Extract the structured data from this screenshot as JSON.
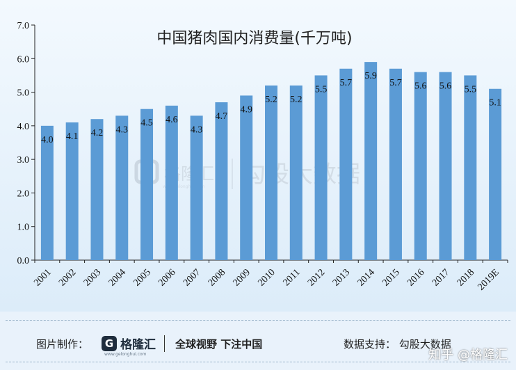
{
  "chart_data": {
    "type": "bar",
    "title": "中国猪肉国内消费量(千万吨)",
    "categories": [
      "2001",
      "2002",
      "2003",
      "2004",
      "2005",
      "2006",
      "2007",
      "2008",
      "2009",
      "2010",
      "2011",
      "2012",
      "2013",
      "2014",
      "2015",
      "2016",
      "2017",
      "2018",
      "2019E"
    ],
    "values": [
      4.0,
      4.1,
      4.2,
      4.3,
      4.5,
      4.6,
      4.3,
      4.7,
      4.9,
      5.2,
      5.2,
      5.5,
      5.7,
      5.9,
      5.7,
      5.6,
      5.6,
      5.5,
      5.1
    ],
    "labels": [
      "4.0",
      "4.1",
      "4.2",
      "4.3",
      "4.5",
      "4.6",
      "4.3",
      "4.7",
      "4.9",
      "5.2",
      "5.2",
      "5.5",
      "5.7",
      "5.9",
      "5.7",
      "5.6",
      "5.6",
      "5.5",
      "5.1"
    ],
    "yticks": [
      "0.0",
      "1.0",
      "2.0",
      "3.0",
      "4.0",
      "5.0",
      "6.0",
      "7.0"
    ],
    "ylim": [
      0,
      7
    ],
    "xlabel": "",
    "ylabel": "",
    "bar_color": "#5b9bd5",
    "grid": false,
    "legend": "none"
  },
  "watermark": {
    "logo_text": "格隆汇",
    "logo_url_text": "www.gelonghui.com",
    "source_text": "勾股大数据"
  },
  "footer": {
    "credit_label": "图片制作：",
    "logo_letter": "G",
    "logo_name": "格隆汇",
    "logo_sub": "www.gelonghui.com",
    "slogan": "全球视野 下注中国",
    "data_support": "数据支持：  勾股大数据",
    "platform_mark": "知乎 @格隆汇"
  }
}
